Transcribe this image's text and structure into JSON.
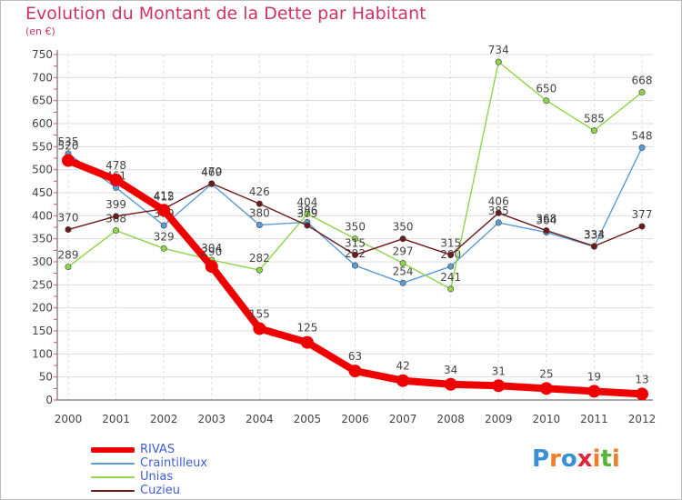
{
  "title": "Evolution du Montant de la Dette par Habitant",
  "unit": "(en €)",
  "logo": {
    "letters": [
      "P",
      "r",
      "o",
      "x",
      "i",
      "t",
      "i"
    ],
    "colors": [
      "#3b8fd6",
      "#f07d2b",
      "#3b8fd6",
      "#e0283a",
      "#f07d2b",
      "#57b43a",
      "#f07d2b"
    ]
  },
  "chart_data": {
    "type": "line",
    "x": [
      "2000",
      "2001",
      "2002",
      "2003",
      "2004",
      "2005",
      "2006",
      "2007",
      "2008",
      "2009",
      "2010",
      "2011",
      "2012"
    ],
    "ylim": [
      0,
      750
    ],
    "yticks": [
      0,
      50,
      100,
      150,
      200,
      250,
      300,
      350,
      400,
      450,
      500,
      550,
      600,
      650,
      700,
      750
    ],
    "grid": true,
    "legend_position": "bottom-left",
    "series": [
      {
        "name": "Craintilleux",
        "color": "#5b9bd5",
        "values": [
          535,
          461,
          379,
          469,
          380,
          386,
          292,
          254,
          290,
          385,
          364,
          333,
          548
        ],
        "labels": [
          "535",
          "461",
          "379",
          "469",
          "380",
          "386",
          "292",
          "254",
          "290",
          "385",
          "364",
          "333",
          "548"
        ]
      },
      {
        "name": "Unias",
        "color": "#8fd44a",
        "values": [
          289,
          368,
          329,
          304,
          282,
          404,
          350,
          297,
          241,
          734,
          650,
          585,
          668
        ],
        "labels": [
          "289",
          "368",
          "329",
          "304",
          "282",
          "404",
          "350",
          "297",
          "241",
          "734",
          "650",
          "585",
          "668"
        ]
      },
      {
        "name": "Cuzieu",
        "color": "#6b1a1a",
        "values": [
          370,
          399,
          415,
          470,
          426,
          379,
          315,
          350,
          315,
          406,
          368,
          334,
          377
        ],
        "labels": [
          "370",
          "399",
          "415",
          "470",
          "426",
          "379",
          "315",
          "350",
          "315",
          "406",
          "368",
          "334",
          "377"
        ]
      },
      {
        "name": "RIVAS",
        "color": "#ee0000",
        "values": [
          520,
          478,
          412,
          290,
          155,
          125,
          63,
          42,
          34,
          31,
          25,
          19,
          13
        ],
        "labels": [
          "520",
          "478",
          "412",
          "290",
          "155",
          "125",
          "63",
          "42",
          "34",
          "31",
          "25",
          "19",
          "13"
        ]
      }
    ]
  },
  "legend_order": [
    "RIVAS",
    "Craintilleux",
    "Unias",
    "Cuzieu"
  ]
}
